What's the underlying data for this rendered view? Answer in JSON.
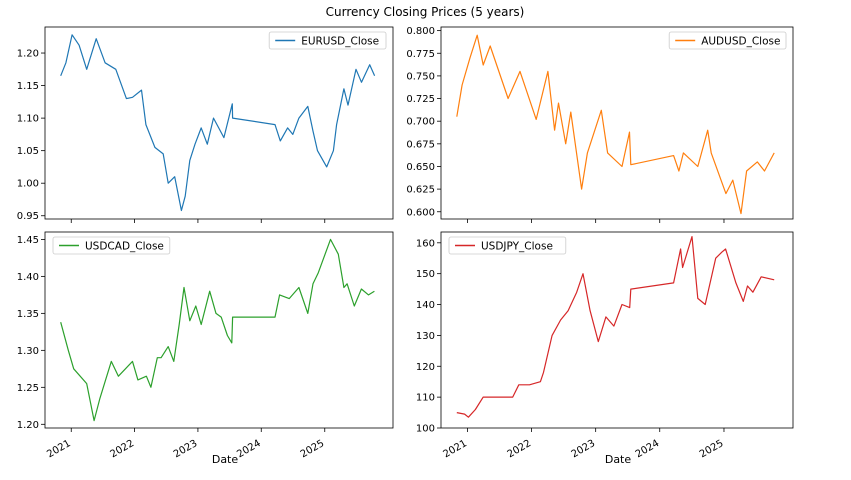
{
  "figure": {
    "title": "Currency Closing Prices (5 years)",
    "xlabel": "Date"
  },
  "chart_data": [
    {
      "type": "line",
      "legend": "top-right",
      "color": "#1f77b4",
      "series": [
        {
          "name": "EURUSD_Close",
          "x": [
            "2020-11-01",
            "2020-12-01",
            "2021-01-06",
            "2021-02-15",
            "2021-03-31",
            "2021-05-25",
            "2021-07-15",
            "2021-09-15",
            "2021-11-15",
            "2021-12-20",
            "2022-02-10",
            "2022-03-07",
            "2022-04-28",
            "2022-06-15",
            "2022-07-14",
            "2022-08-20",
            "2022-09-28",
            "2022-10-20",
            "2022-11-15",
            "2022-12-15",
            "2023-01-20",
            "2023-02-24",
            "2023-04-01",
            "2023-05-31",
            "2023-07-18",
            "2023-07-20",
            "2024-03-20",
            "2024-04-20",
            "2024-06-01",
            "2024-07-01",
            "2024-08-05",
            "2024-09-25",
            "2024-10-25",
            "2024-11-20",
            "2025-01-12",
            "2025-02-20",
            "2025-03-10",
            "2025-04-21",
            "2025-05-15",
            "2025-06-30",
            "2025-08-01",
            "2025-09-17",
            "2025-10-15"
          ],
          "y": [
            1.165,
            1.185,
            1.228,
            1.212,
            1.175,
            1.222,
            1.185,
            1.175,
            1.13,
            1.132,
            1.143,
            1.09,
            1.055,
            1.045,
            1.0,
            1.01,
            0.958,
            0.98,
            1.035,
            1.06,
            1.085,
            1.06,
            1.1,
            1.07,
            1.122,
            1.1,
            1.09,
            1.065,
            1.085,
            1.075,
            1.1,
            1.118,
            1.08,
            1.05,
            1.025,
            1.05,
            1.09,
            1.145,
            1.12,
            1.175,
            1.155,
            1.182,
            1.165
          ]
        }
      ],
      "xticks": [
        "2021",
        "2022",
        "2023",
        "2024",
        "2025"
      ],
      "yticks": [
        "0.95",
        "1.00",
        "1.05",
        "1.10",
        "1.15",
        "1.20"
      ],
      "ylim": [
        0.945,
        1.24
      ]
    },
    {
      "type": "line",
      "legend": "top-right",
      "color": "#ff7f0e",
      "series": [
        {
          "name": "AUDUSD_Close",
          "x": [
            "2020-11-01",
            "2020-12-01",
            "2021-01-15",
            "2021-02-25",
            "2021-03-31",
            "2021-05-10",
            "2021-08-20",
            "2021-10-27",
            "2022-01-27",
            "2022-04-04",
            "2022-05-12",
            "2022-06-03",
            "2022-07-14",
            "2022-08-12",
            "2022-10-13",
            "2022-11-15",
            "2023-02-02",
            "2023-03-10",
            "2023-05-31",
            "2023-07-13",
            "2023-07-20",
            "2024-03-20",
            "2024-04-19",
            "2024-05-15",
            "2024-08-05",
            "2024-09-30",
            "2024-10-20",
            "2025-01-12",
            "2025-02-20",
            "2025-04-08",
            "2025-05-10",
            "2025-07-10",
            "2025-08-20",
            "2025-10-14"
          ],
          "y": [
            0.705,
            0.74,
            0.77,
            0.795,
            0.762,
            0.783,
            0.725,
            0.755,
            0.702,
            0.755,
            0.69,
            0.72,
            0.675,
            0.71,
            0.625,
            0.665,
            0.712,
            0.665,
            0.65,
            0.688,
            0.652,
            0.662,
            0.645,
            0.665,
            0.65,
            0.69,
            0.665,
            0.62,
            0.635,
            0.598,
            0.645,
            0.655,
            0.645,
            0.665
          ]
        }
      ],
      "xticks": [
        "2021",
        "2022",
        "2023",
        "2024",
        "2025"
      ],
      "yticks": [
        "0.600",
        "0.625",
        "0.650",
        "0.675",
        "0.700",
        "0.725",
        "0.750",
        "0.775",
        "0.800"
      ],
      "ylim": [
        0.592,
        0.804
      ]
    },
    {
      "type": "line",
      "legend": "top-left",
      "color": "#2ca02c",
      "series": [
        {
          "name": "USDCAD_Close",
          "x": [
            "2020-11-01",
            "2020-12-15",
            "2021-01-15",
            "2021-03-31",
            "2021-05-13",
            "2021-06-15",
            "2021-08-20",
            "2021-09-30",
            "2021-12-20",
            "2022-01-20",
            "2022-03-10",
            "2022-04-05",
            "2022-05-12",
            "2022-06-03",
            "2022-07-14",
            "2022-08-15",
            "2022-09-15",
            "2022-10-13",
            "2022-11-15",
            "2022-12-20",
            "2023-01-20",
            "2023-03-10",
            "2023-04-15",
            "2023-05-15",
            "2023-06-20",
            "2023-07-15",
            "2023-07-20",
            "2024-03-20",
            "2024-04-16",
            "2024-06-10",
            "2024-08-05",
            "2024-09-25",
            "2024-10-25",
            "2024-11-25",
            "2025-02-03",
            "2025-03-20",
            "2025-04-21",
            "2025-05-10",
            "2025-06-20",
            "2025-07-31",
            "2025-09-10",
            "2025-10-14"
          ],
          "y": [
            1.338,
            1.3,
            1.275,
            1.255,
            1.205,
            1.235,
            1.285,
            1.265,
            1.285,
            1.26,
            1.265,
            1.25,
            1.29,
            1.29,
            1.305,
            1.285,
            1.335,
            1.385,
            1.34,
            1.36,
            1.335,
            1.38,
            1.35,
            1.345,
            1.32,
            1.31,
            1.345,
            1.345,
            1.375,
            1.37,
            1.385,
            1.35,
            1.39,
            1.405,
            1.45,
            1.43,
            1.385,
            1.39,
            1.36,
            1.383,
            1.375,
            1.38
          ]
        }
      ],
      "xticks": [
        "2021",
        "2022",
        "2023",
        "2024",
        "2025"
      ],
      "yticks": [
        "1.20",
        "1.25",
        "1.30",
        "1.35",
        "1.40",
        "1.45"
      ],
      "ylim": [
        1.195,
        1.46
      ]
    },
    {
      "type": "line",
      "legend": "top-left",
      "color": "#d62728",
      "series": [
        {
          "name": "USDJPY_Close",
          "x": [
            "2020-11-01",
            "2020-12-15",
            "2021-01-06",
            "2021-02-15",
            "2021-03-31",
            "2021-06-15",
            "2021-09-15",
            "2021-10-20",
            "2021-12-20",
            "2022-02-20",
            "2022-03-10",
            "2022-04-28",
            "2022-06-15",
            "2022-07-28",
            "2022-09-15",
            "2022-10-21",
            "2022-11-30",
            "2023-01-16",
            "2023-02-28",
            "2023-04-15",
            "2023-05-31",
            "2023-07-14",
            "2023-07-20",
            "2024-03-20",
            "2024-04-29",
            "2024-05-10",
            "2024-07-03",
            "2024-08-05",
            "2024-09-16",
            "2024-11-15",
            "2024-12-20",
            "2025-01-10",
            "2025-03-10",
            "2025-04-21",
            "2025-05-15",
            "2025-06-15",
            "2025-08-01",
            "2025-10-14"
          ],
          "y": [
            105,
            104.5,
            103.5,
            106,
            110,
            110,
            110,
            114,
            114,
            115,
            118,
            130,
            135,
            138,
            144,
            150,
            138,
            128,
            136,
            133,
            140,
            139,
            145,
            147,
            158,
            152,
            162,
            142,
            140,
            155,
            157,
            158,
            147,
            141,
            146,
            144,
            149,
            148
          ]
        }
      ],
      "xticks": [
        "2021",
        "2022",
        "2023",
        "2024",
        "2025"
      ],
      "yticks": [
        "100",
        "110",
        "120",
        "130",
        "140",
        "150",
        "160"
      ],
      "ylim": [
        100,
        163.5
      ]
    }
  ]
}
